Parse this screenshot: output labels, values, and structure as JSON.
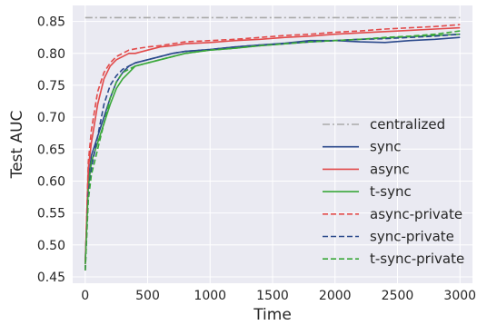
{
  "chart_data": {
    "type": "line",
    "xlabel": "Time",
    "ylabel": "Test AUC",
    "xlim": [
      -100,
      3100
    ],
    "ylim": [
      0.44,
      0.875
    ],
    "xticks": [
      0,
      500,
      1000,
      1500,
      2000,
      2500,
      3000
    ],
    "yticks": [
      0.45,
      0.5,
      0.55,
      0.6,
      0.65,
      0.7,
      0.75,
      0.8,
      0.85
    ],
    "ytick_labels": [
      "0.45",
      "0.50",
      "0.55",
      "0.60",
      "0.65",
      "0.70",
      "0.75",
      "0.80",
      "0.85"
    ],
    "grid": true,
    "background": "#eaeaf2",
    "legend_position": "lower-right",
    "series": [
      {
        "name": "centralized",
        "color": "#a9a9a9",
        "dash": "dashdot",
        "x": [
          0,
          3000
        ],
        "y": [
          0.856,
          0.856
        ]
      },
      {
        "name": "sync",
        "color": "#2c4a8c",
        "dash": "solid",
        "x": [
          0,
          25,
          50,
          100,
          150,
          200,
          250,
          300,
          350,
          400,
          500,
          600,
          700,
          800,
          1000,
          1200,
          1400,
          1600,
          1800,
          2000,
          2200,
          2400,
          2600,
          2800,
          3000
        ],
        "y": [
          0.47,
          0.6,
          0.64,
          0.67,
          0.7,
          0.73,
          0.755,
          0.77,
          0.78,
          0.785,
          0.79,
          0.795,
          0.8,
          0.803,
          0.806,
          0.81,
          0.813,
          0.816,
          0.82,
          0.82,
          0.818,
          0.817,
          0.82,
          0.822,
          0.825
        ]
      },
      {
        "name": "async",
        "color": "#e24a4a",
        "dash": "solid",
        "x": [
          0,
          25,
          50,
          100,
          150,
          200,
          250,
          300,
          350,
          400,
          500,
          600,
          700,
          800,
          1000,
          1200,
          1400,
          1600,
          1800,
          2000,
          2200,
          2400,
          2600,
          2800,
          3000
        ],
        "y": [
          0.47,
          0.62,
          0.66,
          0.72,
          0.76,
          0.78,
          0.79,
          0.795,
          0.8,
          0.8,
          0.805,
          0.81,
          0.812,
          0.815,
          0.817,
          0.82,
          0.822,
          0.825,
          0.827,
          0.83,
          0.832,
          0.834,
          0.836,
          0.838,
          0.84
        ]
      },
      {
        "name": "t-sync",
        "color": "#3aa83a",
        "dash": "solid",
        "x": [
          0,
          25,
          50,
          100,
          150,
          200,
          250,
          300,
          350,
          400,
          500,
          600,
          700,
          800,
          1000,
          1200,
          1400,
          1600,
          1800,
          2000,
          2200,
          2400,
          2600,
          2800,
          3000
        ],
        "y": [
          0.47,
          0.59,
          0.63,
          0.66,
          0.69,
          0.72,
          0.745,
          0.76,
          0.77,
          0.78,
          0.785,
          0.79,
          0.795,
          0.8,
          0.805,
          0.808,
          0.812,
          0.815,
          0.818,
          0.82,
          0.822,
          0.824,
          0.826,
          0.828,
          0.83
        ]
      },
      {
        "name": "async-private",
        "color": "#e24a4a",
        "dash": "dashed",
        "x": [
          0,
          25,
          50,
          100,
          150,
          200,
          250,
          300,
          350,
          400,
          500,
          600,
          700,
          800,
          1000,
          1200,
          1400,
          1600,
          1800,
          2000,
          2200,
          2400,
          2600,
          2800,
          3000
        ],
        "y": [
          0.46,
          0.63,
          0.68,
          0.74,
          0.77,
          0.785,
          0.795,
          0.8,
          0.805,
          0.807,
          0.81,
          0.812,
          0.815,
          0.818,
          0.82,
          0.822,
          0.825,
          0.828,
          0.83,
          0.833,
          0.835,
          0.838,
          0.84,
          0.842,
          0.845
        ]
      },
      {
        "name": "sync-private",
        "color": "#2c4a8c",
        "dash": "dashed",
        "x": [
          0,
          25,
          50,
          100,
          150,
          200,
          250,
          300,
          350,
          400,
          500,
          600,
          700,
          800,
          1000,
          1200,
          1400,
          1600,
          1800,
          2000,
          2200,
          2400,
          2600,
          2800,
          3000
        ],
        "y": [
          0.46,
          0.58,
          0.62,
          0.67,
          0.72,
          0.75,
          0.765,
          0.775,
          0.78,
          0.785,
          0.79,
          0.795,
          0.8,
          0.803,
          0.806,
          0.81,
          0.813,
          0.815,
          0.818,
          0.82,
          0.822,
          0.823,
          0.825,
          0.827,
          0.83
        ]
      },
      {
        "name": "t-sync-private",
        "color": "#3aa83a",
        "dash": "dashed",
        "x": [
          0,
          25,
          50,
          100,
          150,
          200,
          250,
          300,
          350,
          400,
          500,
          600,
          700,
          800,
          1000,
          1200,
          1400,
          1600,
          1800,
          2000,
          2200,
          2400,
          2600,
          2800,
          3000
        ],
        "y": [
          0.46,
          0.57,
          0.61,
          0.65,
          0.69,
          0.73,
          0.755,
          0.77,
          0.775,
          0.78,
          0.785,
          0.79,
          0.795,
          0.8,
          0.805,
          0.808,
          0.812,
          0.815,
          0.818,
          0.82,
          0.822,
          0.825,
          0.827,
          0.83,
          0.835
        ]
      }
    ]
  }
}
